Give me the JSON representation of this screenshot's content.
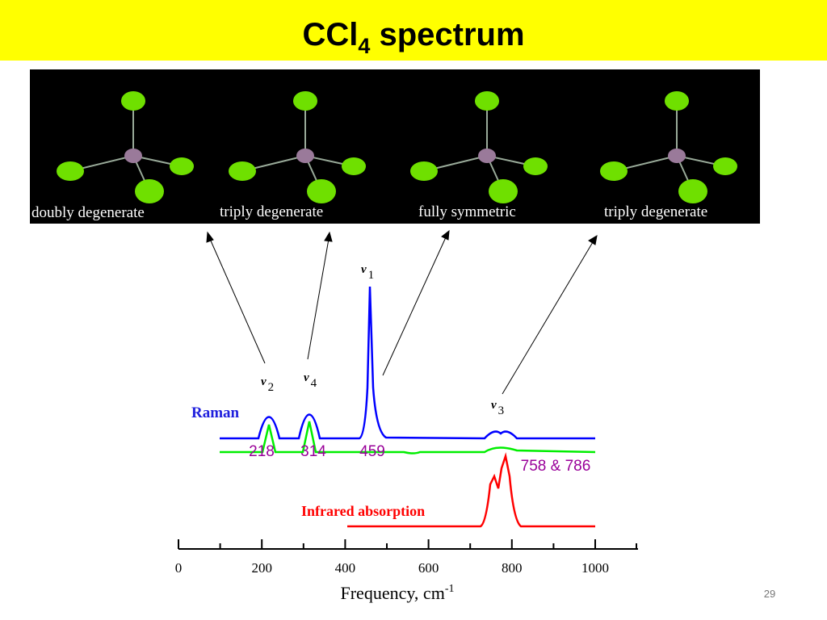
{
  "header": {
    "title": {
      "main": "CCl",
      "subscript": "4",
      "rest": " spectrum"
    }
  },
  "modes": [
    "doubly degenerate",
    "triply degenerate",
    "fully symmetric",
    "triply degenerate"
  ],
  "spectrum": {
    "peaks": [
      {
        "symbol": "ν",
        "index": "2"
      },
      {
        "symbol": "ν",
        "index": "4"
      },
      {
        "symbol": "ν",
        "index": "1"
      },
      {
        "symbol": "ν",
        "index": "3"
      }
    ],
    "raman_label": "Raman",
    "ir_label": "Infrared absorption",
    "peak_values": [
      "218",
      "314",
      "459",
      "758 & 786"
    ],
    "x_ticks": [
      "0",
      "200",
      "400",
      "600",
      "800",
      "1000"
    ],
    "x_label": {
      "text": "Frequency, cm",
      "sup": "-1"
    }
  },
  "page_number": "29"
}
